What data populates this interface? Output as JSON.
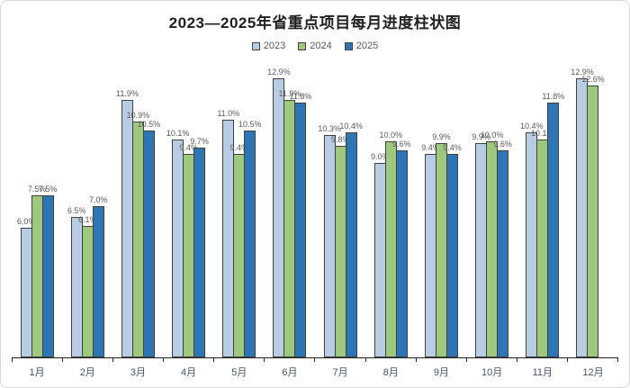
{
  "title": "2023—2025年省重点项目每月进度柱状图",
  "chart_data": {
    "type": "bar",
    "title": "2023—2025年省重点项目每月进度柱状图",
    "categories": [
      "1月",
      "2月",
      "3月",
      "4月",
      "5月",
      "6月",
      "7月",
      "8月",
      "9月",
      "10月",
      "11月",
      "12月"
    ],
    "series": [
      {
        "name": "2023",
        "color": "#b8cce4",
        "values": [
          6.0,
          6.5,
          11.9,
          10.1,
          11.0,
          12.9,
          10.3,
          9.0,
          9.4,
          9.9,
          10.4,
          12.9
        ]
      },
      {
        "name": "2024",
        "color": "#9ec87d",
        "values": [
          7.5,
          6.1,
          10.9,
          9.4,
          9.4,
          11.9,
          9.8,
          10.0,
          9.9,
          10.0,
          10.1,
          12.6
        ]
      },
      {
        "name": "2025",
        "color": "#2e75b6",
        "values": [
          7.5,
          7.0,
          10.5,
          9.7,
          10.5,
          11.8,
          10.4,
          9.6,
          9.4,
          9.6,
          11.8,
          null
        ]
      }
    ],
    "value_suffix": "%",
    "ylim": [
      0,
      13
    ],
    "grid": false,
    "legend_position": "top",
    "bar_outline_color": "#404040",
    "value_label_color": "#595959",
    "axis_label_color": "#44546a"
  }
}
